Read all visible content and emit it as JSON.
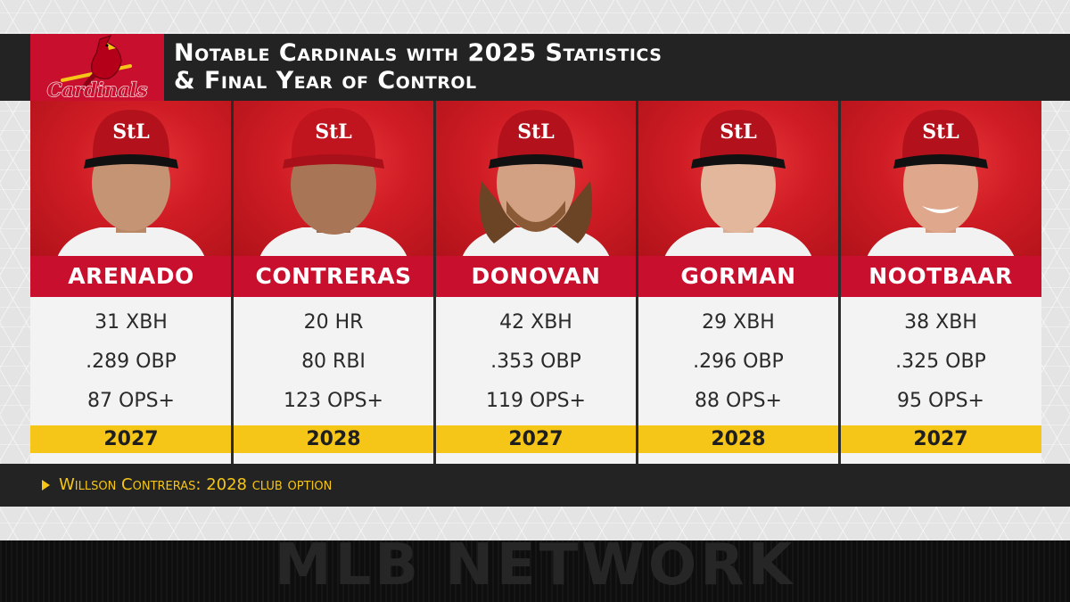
{
  "graphic": {
    "title_line_1": "Notable Cardinals with 2025 Statistics",
    "title_line_2": "& Final Year of Control",
    "logo_text": "Cardinals",
    "footnote": "Willson Contreras: 2028 club option",
    "watermark": "MLB NETWORK"
  },
  "colors": {
    "brand_red": "#c8102e",
    "highlight_yellow": "#f5c518",
    "header_dark": "#232323"
  },
  "players": [
    {
      "name": "ARENADO",
      "stats": [
        "31 XBH",
        ".289 OBP",
        "87 OPS+"
      ],
      "final_year": "2027"
    },
    {
      "name": "CONTRERAS",
      "stats": [
        "20 HR",
        "80 RBI",
        "123 OPS+"
      ],
      "final_year": "2028"
    },
    {
      "name": "DONOVAN",
      "stats": [
        "42 XBH",
        ".353 OBP",
        "119 OPS+"
      ],
      "final_year": "2027"
    },
    {
      "name": "GORMAN",
      "stats": [
        "29 XBH",
        ".296 OBP",
        "88 OPS+"
      ],
      "final_year": "2028"
    },
    {
      "name": "NOOTBAAR",
      "stats": [
        "38 XBH",
        ".325 OBP",
        "95 OPS+"
      ],
      "final_year": "2027"
    }
  ]
}
